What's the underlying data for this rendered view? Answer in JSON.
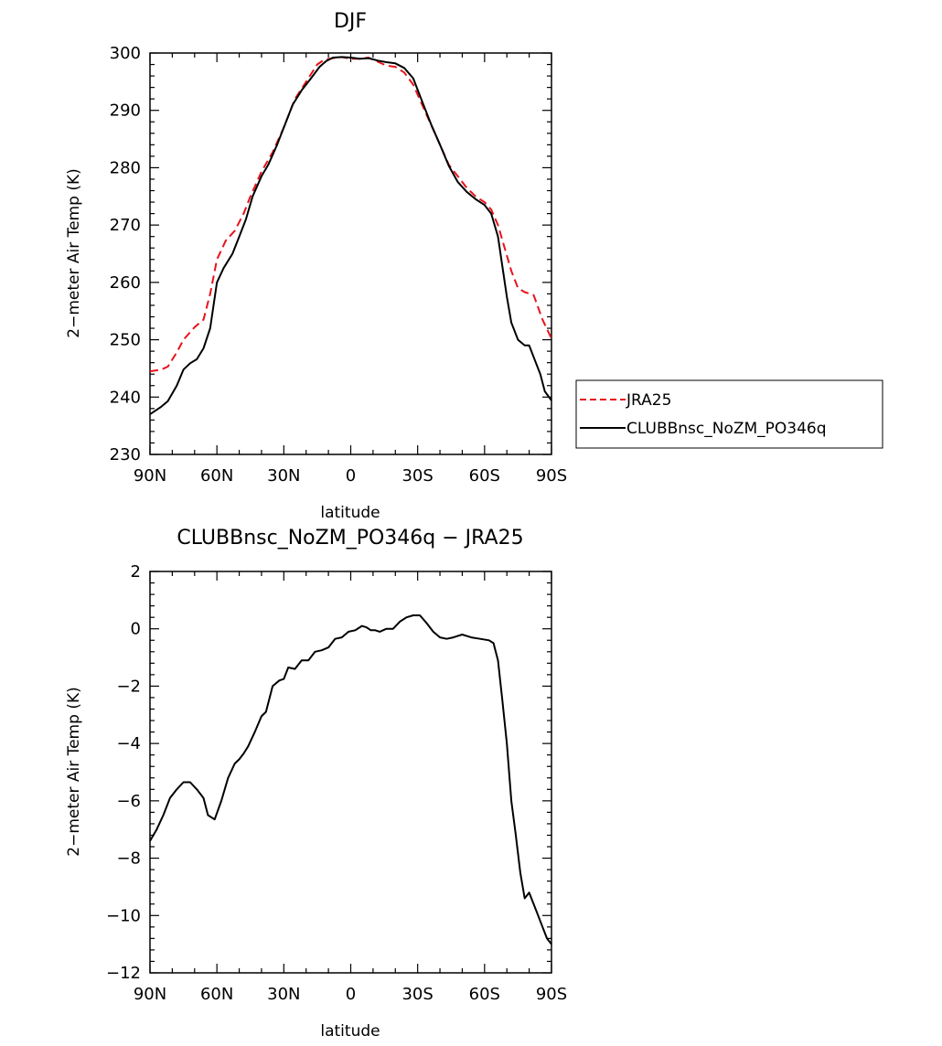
{
  "chart_data": [
    {
      "type": "line",
      "title": "DJF",
      "xlabel": "latitude",
      "ylabel": "2−meter Air Temp (K)",
      "xlim": [
        90,
        -90
      ],
      "ylim": [
        230,
        300
      ],
      "x_ticks": [
        {
          "value": 90,
          "label": "90N"
        },
        {
          "value": 60,
          "label": "60N"
        },
        {
          "value": 30,
          "label": "30N"
        },
        {
          "value": 0,
          "label": "0"
        },
        {
          "value": -30,
          "label": "30S"
        },
        {
          "value": -60,
          "label": "60S"
        },
        {
          "value": -90,
          "label": "90S"
        }
      ],
      "y_ticks": [
        {
          "value": 230,
          "label": "230"
        },
        {
          "value": 240,
          "label": "240"
        },
        {
          "value": 250,
          "label": "250"
        },
        {
          "value": 260,
          "label": "260"
        },
        {
          "value": 270,
          "label": "270"
        },
        {
          "value": 280,
          "label": "280"
        },
        {
          "value": 290,
          "label": "290"
        },
        {
          "value": 300,
          "label": "300"
        }
      ],
      "grid": false,
      "legend": "right",
      "series": [
        {
          "name": "JRA25",
          "color": "#e8121b",
          "dash": "dashed",
          "x": [
            90,
            85,
            82,
            78,
            75,
            70,
            66,
            63,
            60,
            56,
            52,
            48,
            45,
            40,
            35,
            30,
            25,
            20,
            15,
            12,
            8,
            4,
            0,
            -4,
            -8,
            -12,
            -16,
            -20,
            -24,
            -28,
            -32,
            -36,
            -40,
            -44,
            -48,
            -52,
            -56,
            -60,
            -63,
            -66,
            -69,
            -72,
            -75,
            -78,
            -82,
            -86,
            -90
          ],
          "y": [
            244.5,
            244.8,
            245.3,
            247.8,
            250.0,
            252.2,
            253.5,
            258.0,
            264.0,
            267.3,
            269.0,
            272.0,
            275.0,
            279.3,
            282.7,
            287.0,
            292.0,
            295.0,
            298.0,
            298.8,
            299.1,
            299.3,
            299.0,
            299.0,
            299.2,
            298.5,
            297.8,
            297.6,
            296.6,
            294.5,
            291.0,
            287.5,
            284.0,
            280.5,
            278.5,
            276.5,
            275.0,
            274.0,
            272.7,
            270.0,
            266.0,
            262.0,
            259.0,
            258.3,
            257.8,
            253.5,
            250.2
          ]
        },
        {
          "name": "CLUBBnsc_NoZM_PO346q",
          "color": "#000000",
          "dash": "solid",
          "x": [
            90,
            85,
            82,
            78,
            75,
            72,
            69,
            66,
            63,
            60,
            57,
            53,
            50,
            47,
            44,
            40,
            37,
            33,
            30,
            26,
            22,
            18,
            14,
            11,
            8,
            4,
            0,
            -4,
            -8,
            -12,
            -16,
            -20,
            -24,
            -28,
            -32,
            -36,
            -40,
            -44,
            -48,
            -52,
            -56,
            -60,
            -63,
            -66,
            -68,
            -70,
            -72,
            -75,
            -78,
            -80,
            -83,
            -85,
            -87,
            -90
          ],
          "y": [
            237.0,
            238.3,
            239.3,
            242.0,
            244.8,
            245.9,
            246.6,
            248.5,
            252.0,
            260.0,
            262.5,
            265.0,
            268.0,
            271.0,
            275.0,
            278.5,
            280.5,
            284.0,
            287.0,
            291.0,
            293.5,
            295.5,
            297.6,
            298.6,
            299.2,
            299.3,
            299.2,
            299.0,
            299.1,
            298.7,
            298.4,
            298.2,
            297.4,
            295.6,
            291.6,
            287.6,
            284.0,
            280.3,
            277.5,
            275.8,
            274.5,
            273.5,
            272.0,
            268.0,
            262.8,
            257.5,
            253.0,
            250.0,
            249.0,
            249.0,
            246.0,
            244.0,
            241.0,
            239.4
          ]
        }
      ]
    },
    {
      "type": "line",
      "title": "CLUBBnsc_NoZM_PO346q − JRA25",
      "xlabel": "latitude",
      "ylabel": "2−meter Air Temp (K)",
      "xlim": [
        90,
        -90
      ],
      "ylim": [
        -12,
        2
      ],
      "x_ticks": [
        {
          "value": 90,
          "label": "90N"
        },
        {
          "value": 60,
          "label": "60N"
        },
        {
          "value": 30,
          "label": "30N"
        },
        {
          "value": 0,
          "label": "0"
        },
        {
          "value": -30,
          "label": "30S"
        },
        {
          "value": -60,
          "label": "60S"
        },
        {
          "value": -90,
          "label": "90S"
        }
      ],
      "y_ticks": [
        {
          "value": -12,
          "label": "−12"
        },
        {
          "value": -10,
          "label": "−10"
        },
        {
          "value": -8,
          "label": "−8"
        },
        {
          "value": -6,
          "label": "−6"
        },
        {
          "value": -4,
          "label": "−4"
        },
        {
          "value": -2,
          "label": "−2"
        },
        {
          "value": 0,
          "label": "0"
        },
        {
          "value": 2,
          "label": "2"
        }
      ],
      "grid": false,
      "series": [
        {
          "color": "#000000",
          "dash": "solid",
          "x": [
            90,
            87,
            84,
            81,
            78,
            75,
            72,
            69,
            66,
            64,
            61,
            58,
            55,
            52,
            50,
            48,
            46,
            43,
            40,
            38,
            35,
            32,
            30,
            28,
            25,
            22,
            19,
            16,
            13,
            10,
            7,
            4,
            1,
            -2,
            -5,
            -7,
            -9,
            -11,
            -13,
            -16,
            -19,
            -22,
            -25,
            -28,
            -31,
            -34,
            -37,
            -40,
            -43,
            -46,
            -50,
            -54,
            -58,
            -62,
            -64,
            -66,
            -68,
            -70,
            -72,
            -74,
            -76,
            -78,
            -80,
            -82,
            -84,
            -86,
            -88,
            -90
          ],
          "y": [
            -7.4,
            -7.0,
            -6.5,
            -5.9,
            -5.6,
            -5.35,
            -5.35,
            -5.6,
            -5.9,
            -6.5,
            -6.65,
            -6.0,
            -5.2,
            -4.7,
            -4.55,
            -4.35,
            -4.1,
            -3.6,
            -3.05,
            -2.9,
            -2.0,
            -1.8,
            -1.75,
            -1.35,
            -1.4,
            -1.1,
            -1.1,
            -0.8,
            -0.75,
            -0.65,
            -0.35,
            -0.3,
            -0.1,
            -0.05,
            0.1,
            0.05,
            -0.05,
            -0.05,
            -0.1,
            0.0,
            0.0,
            0.25,
            0.4,
            0.47,
            0.47,
            0.2,
            -0.1,
            -0.3,
            -0.35,
            -0.3,
            -0.2,
            -0.3,
            -0.35,
            -0.4,
            -0.5,
            -1.1,
            -2.5,
            -4.0,
            -6.0,
            -7.2,
            -8.5,
            -9.4,
            -9.2,
            -9.6,
            -10.0,
            -10.4,
            -10.8,
            -11.0
          ]
        }
      ]
    }
  ]
}
